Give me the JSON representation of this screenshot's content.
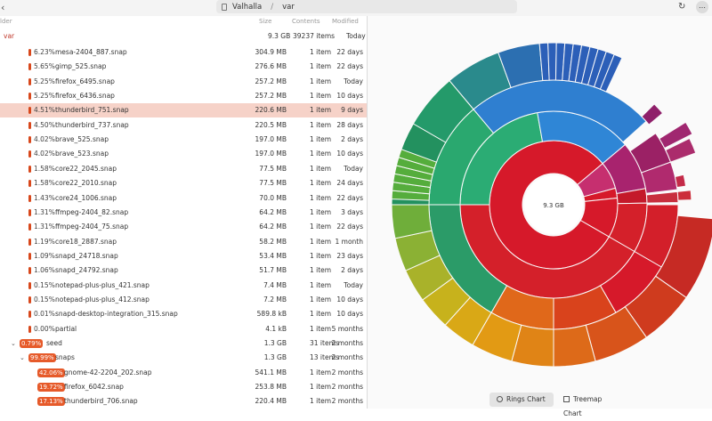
{
  "window": {
    "path_root": "Valhalla",
    "path_sep": "/",
    "path_current": "var"
  },
  "columns": {
    "folder": "lder",
    "size": "Size",
    "contents": "Contents",
    "modified": "Modified"
  },
  "root_row": {
    "name": "var",
    "size": "9.3 GB",
    "contents": "39237 items",
    "modified": "Today"
  },
  "rows": [
    {
      "pct": "6.23%",
      "name": "mesa-2404_887.snap",
      "size": "304.9 MB",
      "contents": "1 item",
      "modified": "22 days"
    },
    {
      "pct": "5.65%",
      "name": "gimp_525.snap",
      "size": "276.6 MB",
      "contents": "1 item",
      "modified": "22 days"
    },
    {
      "pct": "5.25%",
      "name": "firefox_6495.snap",
      "size": "257.2 MB",
      "contents": "1 item",
      "modified": "Today"
    },
    {
      "pct": "5.25%",
      "name": "firefox_6436.snap",
      "size": "257.2 MB",
      "contents": "1 item",
      "modified": "10 days"
    },
    {
      "pct": "4.51%",
      "name": "thunderbird_751.snap",
      "size": "220.6 MB",
      "contents": "1 item",
      "modified": "9 days"
    },
    {
      "pct": "4.50%",
      "name": "thunderbird_737.snap",
      "size": "220.5 MB",
      "contents": "1 item",
      "modified": "28 days"
    },
    {
      "pct": "4.02%",
      "name": "brave_525.snap",
      "size": "197.0 MB",
      "contents": "1 item",
      "modified": "2 days"
    },
    {
      "pct": "4.02%",
      "name": "brave_523.snap",
      "size": "197.0 MB",
      "contents": "1 item",
      "modified": "10 days"
    },
    {
      "pct": "1.58%",
      "name": "core22_2045.snap",
      "size": "77.5 MB",
      "contents": "1 item",
      "modified": "Today"
    },
    {
      "pct": "1.58%",
      "name": "core22_2010.snap",
      "size": "77.5 MB",
      "contents": "1 item",
      "modified": "24 days"
    },
    {
      "pct": "1.43%",
      "name": "core24_1006.snap",
      "size": "70.0 MB",
      "contents": "1 item",
      "modified": "22 days"
    },
    {
      "pct": "1.31%",
      "name": "ffmpeg-2404_82.snap",
      "size": "64.2 MB",
      "contents": "1 item",
      "modified": "3 days"
    },
    {
      "pct": "1.31%",
      "name": "ffmpeg-2404_75.snap",
      "size": "64.2 MB",
      "contents": "1 item",
      "modified": "22 days"
    },
    {
      "pct": "1.19%",
      "name": "core18_2887.snap",
      "size": "58.2 MB",
      "contents": "1 item",
      "modified": "1 month"
    },
    {
      "pct": "1.09%",
      "name": "snapd_24718.snap",
      "size": "53.4 MB",
      "contents": "1 item",
      "modified": "23 days"
    },
    {
      "pct": "1.06%",
      "name": "snapd_24792.snap",
      "size": "51.7 MB",
      "contents": "1 item",
      "modified": "2 days"
    },
    {
      "pct": "0.15%",
      "name": "notepad-plus-plus_421.snap",
      "size": "7.4 MB",
      "contents": "1 item",
      "modified": "Today"
    },
    {
      "pct": "0.15%",
      "name": "notepad-plus-plus_412.snap",
      "size": "7.2 MB",
      "contents": "1 item",
      "modified": "10 days"
    },
    {
      "pct": "0.01%",
      "name": "snapd-desktop-integration_315.snap",
      "size": "589.8 kB",
      "contents": "1 item",
      "modified": "10 days"
    },
    {
      "pct": "0.00%",
      "name": "partial",
      "size": "4.1 kB",
      "contents": "1 item",
      "modified": "5 months"
    }
  ],
  "seed_row": {
    "pct": "0.79%",
    "name": "seed",
    "size": "1.3 GB",
    "contents": "31 items",
    "modified": "2 months"
  },
  "snaps_row": {
    "pct": "99.99%",
    "name": "snaps",
    "size": "1.3 GB",
    "contents": "13 items",
    "modified": "2 months"
  },
  "sub_rows": [
    {
      "pct": "42.06%",
      "name": "gnome-42-2204_202.snap",
      "size": "541.1 MB",
      "contents": "1 item",
      "modified": "2 months"
    },
    {
      "pct": "19.72%",
      "name": "firefox_6042.snap",
      "size": "253.8 MB",
      "contents": "1 item",
      "modified": "2 months"
    },
    {
      "pct": "17.13%",
      "name": "thunderbird_706.snap",
      "size": "220.4 MB",
      "contents": "1 item",
      "modified": "2 months"
    }
  ],
  "chart": {
    "center_label": "9.3 GB"
  },
  "view_buttons": {
    "rings": "Rings Chart",
    "treemap": "Treemap Chart"
  }
}
